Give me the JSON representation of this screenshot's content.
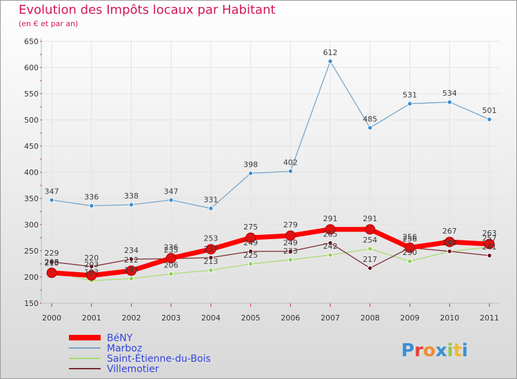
{
  "chart_data": {
    "type": "line",
    "title": "Evolution des Impôts locaux par Habitant",
    "subtitle": "(en € et par an)",
    "xlabel": "",
    "ylabel": "",
    "ylim": [
      150,
      650
    ],
    "yticks": [
      150,
      200,
      250,
      300,
      350,
      400,
      450,
      500,
      550,
      600,
      650
    ],
    "categories": [
      "2000",
      "2001",
      "2002",
      "2003",
      "2004",
      "2005",
      "2006",
      "2007",
      "2008",
      "2009",
      "2010",
      "2011"
    ],
    "series": [
      {
        "name": "Marboz",
        "color": "#77a5c9",
        "marker": "#3a8fd1",
        "values": [
          347,
          336,
          338,
          347,
          331,
          398,
          402,
          612,
          485,
          531,
          534,
          501
        ]
      },
      {
        "name": "Saint-Étienne-du-Bois",
        "color": "#a9dc72",
        "marker": "#8fd14f",
        "values": [
          210,
          193,
          197,
          206,
          213,
          225,
          233,
          242,
          254,
          230,
          249,
          257
        ]
      },
      {
        "name": "Villemotier",
        "color": "#7a2b33",
        "marker": "#6b1020",
        "values": [
          229,
          220,
          234,
          235,
          237,
          249,
          249,
          265,
          217,
          256,
          249,
          241
        ]
      },
      {
        "name": "BéNY",
        "color": "#ff0000",
        "marker": "#e01010",
        "values": [
          208,
          203,
          212,
          236,
          253,
          275,
          279,
          291,
          291,
          256,
          267,
          263
        ]
      }
    ]
  },
  "legend": {
    "items": [
      {
        "label": "BéNY",
        "color": "#ff0000"
      },
      {
        "label": "Marboz",
        "color": "#77a5c9"
      },
      {
        "label": "Saint-Étienne-du-Bois",
        "color": "#a9dc72"
      },
      {
        "label": "Villemotier",
        "color": "#7a2b33"
      }
    ]
  },
  "logo": {
    "text": "Proxiti"
  }
}
